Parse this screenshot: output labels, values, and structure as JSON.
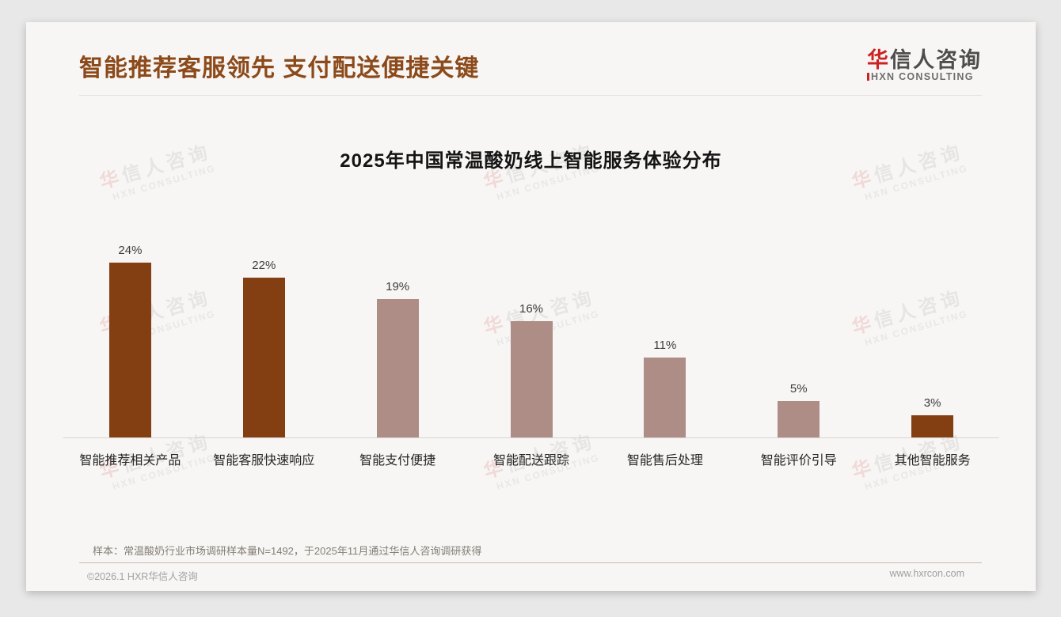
{
  "page": {
    "title": "智能推荐客服领先 支付配送便捷关键",
    "logo": {
      "cn_first": "华",
      "cn_rest": "信人咨询",
      "en": "HXN CONSULTING"
    },
    "watermark": {
      "cn_first": "华",
      "cn_rest": "信人咨询",
      "en": "HXN CONSULTING"
    },
    "footnote": "样本：常温酸奶行业市场调研样本量N=1492，于2025年11月通过华信人咨询调研获得",
    "copyright": "©2026.1 HXR华信人咨询",
    "website": "www.hxrcon.com"
  },
  "colors": {
    "title_brown": "#8C4A1A",
    "bar_dark_brown": "#833E12",
    "bar_light_mauve": "#AD8D85",
    "logo_red": "#CC2222",
    "axis_gray": "#D8D4D0"
  },
  "chart_data": {
    "type": "bar",
    "title": "2025年中国常温酸奶线上智能服务体验分布",
    "categories": [
      "智能推荐相关产品",
      "智能客服快速响应",
      "智能支付便捷",
      "智能配送跟踪",
      "智能售后处理",
      "智能评价引导",
      "其他智能服务"
    ],
    "values": [
      24,
      22,
      19,
      16,
      11,
      5,
      3
    ],
    "value_labels": [
      "24%",
      "22%",
      "19%",
      "16%",
      "11%",
      "5%",
      "3%"
    ],
    "bar_colors": [
      "#833E12",
      "#833E12",
      "#AD8D85",
      "#AD8D85",
      "#AD8D85",
      "#AD8D85",
      "#833E12"
    ],
    "xlabel": "",
    "ylabel": "",
    "ylim": [
      0,
      26
    ],
    "grid": false,
    "legend": false,
    "value_labels_position": "above-bars"
  }
}
